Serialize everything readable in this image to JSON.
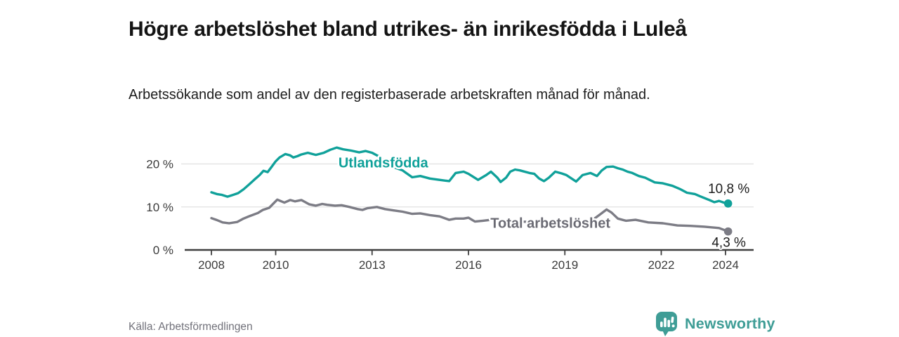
{
  "header": {
    "title": "Högre arbetslöshet bland utrikes- än inrikesfödda i Luleå",
    "subtitle": "Arbetssökande som andel av den registerbaserade arbetskraften månad för månad."
  },
  "footer": {
    "source": "Källa: Arbetsförmedlingen",
    "brand": "Newsworthy"
  },
  "colors": {
    "accent_teal": "#10a19a",
    "line_gray": "#7c7c85",
    "label_gray": "#6b6b74",
    "brand_teal": "#3f9d96",
    "axis": "#3f3f3f",
    "grid": "#e0e0e0",
    "value_text": "#1b1b1b"
  },
  "chart_data": {
    "type": "line",
    "title": "Högre arbetslöshet bland utrikes- än inrikesfödda i Luleå",
    "subtitle": "Arbetssökande som andel av den registerbaserade arbetskraften månad för månad.",
    "x_unit": "year (monthly data)",
    "y_unit": "percent",
    "xlim": [
      2007.2,
      2024.9
    ],
    "ylim": [
      0,
      25
    ],
    "grid": "horizontal",
    "x_ticks": [
      {
        "value": 2008,
        "label": "2008"
      },
      {
        "value": 2010,
        "label": "2010"
      },
      {
        "value": 2013,
        "label": "2013"
      },
      {
        "value": 2016,
        "label": "2016"
      },
      {
        "value": 2019,
        "label": "2019"
      },
      {
        "value": 2022,
        "label": "2022"
      },
      {
        "value": 2024,
        "label": "2024"
      }
    ],
    "y_ticks": [
      {
        "value": 0,
        "label": "0 %"
      },
      {
        "value": 10,
        "label": "10 %"
      },
      {
        "value": 20,
        "label": "20 %"
      }
    ],
    "series": [
      {
        "name": "Utlandsfödda",
        "color": "#10a19a",
        "label_anchor": {
          "x": 2013.35,
          "y": 20.3
        },
        "end_label": "10,8 %",
        "end_label_pos": "above",
        "end_value": 10.8,
        "points": [
          [
            2008.0,
            13.4
          ],
          [
            2008.17,
            13.0
          ],
          [
            2008.33,
            12.8
          ],
          [
            2008.5,
            12.4
          ],
          [
            2008.67,
            12.8
          ],
          [
            2008.83,
            13.2
          ],
          [
            2009.0,
            14.1
          ],
          [
            2009.17,
            15.2
          ],
          [
            2009.33,
            16.3
          ],
          [
            2009.5,
            17.4
          ],
          [
            2009.62,
            18.4
          ],
          [
            2009.75,
            18.1
          ],
          [
            2009.87,
            19.3
          ],
          [
            2010.0,
            20.6
          ],
          [
            2010.12,
            21.5
          ],
          [
            2010.3,
            22.3
          ],
          [
            2010.45,
            22.0
          ],
          [
            2010.55,
            21.5
          ],
          [
            2010.67,
            21.8
          ],
          [
            2010.8,
            22.2
          ],
          [
            2011.0,
            22.6
          ],
          [
            2011.25,
            22.1
          ],
          [
            2011.5,
            22.6
          ],
          [
            2011.7,
            23.3
          ],
          [
            2011.9,
            23.8
          ],
          [
            2012.1,
            23.4
          ],
          [
            2012.35,
            23.1
          ],
          [
            2012.6,
            22.7
          ],
          [
            2012.8,
            23.0
          ],
          [
            2013.0,
            22.6
          ],
          [
            2013.2,
            21.8
          ],
          [
            2013.45,
            20.2
          ],
          [
            2013.65,
            19.3
          ],
          [
            2013.95,
            18.5
          ],
          [
            2014.25,
            16.9
          ],
          [
            2014.5,
            17.2
          ],
          [
            2014.8,
            16.6
          ],
          [
            2015.1,
            16.3
          ],
          [
            2015.4,
            16.0
          ],
          [
            2015.6,
            17.9
          ],
          [
            2015.85,
            18.2
          ],
          [
            2016.0,
            17.7
          ],
          [
            2016.3,
            16.3
          ],
          [
            2016.55,
            17.4
          ],
          [
            2016.7,
            18.2
          ],
          [
            2016.9,
            16.8
          ],
          [
            2017.0,
            15.8
          ],
          [
            2017.17,
            16.8
          ],
          [
            2017.3,
            18.2
          ],
          [
            2017.45,
            18.7
          ],
          [
            2017.6,
            18.5
          ],
          [
            2017.9,
            17.9
          ],
          [
            2018.05,
            17.7
          ],
          [
            2018.2,
            16.6
          ],
          [
            2018.35,
            16.0
          ],
          [
            2018.5,
            16.8
          ],
          [
            2018.7,
            18.2
          ],
          [
            2018.9,
            17.8
          ],
          [
            2019.05,
            17.4
          ],
          [
            2019.35,
            15.9
          ],
          [
            2019.55,
            17.4
          ],
          [
            2019.8,
            17.9
          ],
          [
            2020.0,
            17.2
          ],
          [
            2020.15,
            18.5
          ],
          [
            2020.3,
            19.3
          ],
          [
            2020.5,
            19.4
          ],
          [
            2020.65,
            19.0
          ],
          [
            2020.8,
            18.7
          ],
          [
            2020.95,
            18.2
          ],
          [
            2021.1,
            17.9
          ],
          [
            2021.3,
            17.2
          ],
          [
            2021.5,
            16.8
          ],
          [
            2021.8,
            15.7
          ],
          [
            2022.05,
            15.5
          ],
          [
            2022.35,
            14.9
          ],
          [
            2022.6,
            14.1
          ],
          [
            2022.8,
            13.3
          ],
          [
            2023.05,
            13.0
          ],
          [
            2023.2,
            12.5
          ],
          [
            2023.5,
            11.6
          ],
          [
            2023.65,
            11.1
          ],
          [
            2023.8,
            11.4
          ],
          [
            2023.95,
            11.0
          ],
          [
            2024.08,
            10.8
          ]
        ]
      },
      {
        "name": "Total arbetslöshet",
        "color": "#7c7c85",
        "label_color": "#6b6b74",
        "label_anchor": {
          "x": 2018.55,
          "y": 6.3
        },
        "end_label": "4,3 %",
        "end_label_pos": "below",
        "end_value": 4.3,
        "points": [
          [
            2008.0,
            7.4
          ],
          [
            2008.15,
            7.0
          ],
          [
            2008.35,
            6.4
          ],
          [
            2008.55,
            6.2
          ],
          [
            2008.8,
            6.5
          ],
          [
            2009.0,
            7.3
          ],
          [
            2009.2,
            7.9
          ],
          [
            2009.45,
            8.6
          ],
          [
            2009.6,
            9.3
          ],
          [
            2009.8,
            9.8
          ],
          [
            2010.05,
            11.7
          ],
          [
            2010.27,
            11.0
          ],
          [
            2010.45,
            11.6
          ],
          [
            2010.6,
            11.3
          ],
          [
            2010.8,
            11.6
          ],
          [
            2011.05,
            10.6
          ],
          [
            2011.25,
            10.3
          ],
          [
            2011.45,
            10.7
          ],
          [
            2011.6,
            10.5
          ],
          [
            2011.85,
            10.3
          ],
          [
            2012.05,
            10.4
          ],
          [
            2012.3,
            10.0
          ],
          [
            2012.55,
            9.5
          ],
          [
            2012.7,
            9.3
          ],
          [
            2012.85,
            9.7
          ],
          [
            2013.15,
            10.0
          ],
          [
            2013.4,
            9.5
          ],
          [
            2013.65,
            9.2
          ],
          [
            2013.95,
            8.9
          ],
          [
            2014.25,
            8.4
          ],
          [
            2014.5,
            8.5
          ],
          [
            2014.8,
            8.1
          ],
          [
            2015.1,
            7.8
          ],
          [
            2015.4,
            7.0
          ],
          [
            2015.6,
            7.3
          ],
          [
            2015.85,
            7.3
          ],
          [
            2016.0,
            7.5
          ],
          [
            2016.2,
            6.6
          ],
          [
            2016.45,
            6.8
          ],
          [
            2016.7,
            7.0
          ],
          [
            2017.0,
            6.6
          ],
          [
            2017.3,
            6.4
          ],
          [
            2017.6,
            6.6
          ],
          [
            2018.0,
            6.5
          ],
          [
            2018.3,
            6.2
          ],
          [
            2018.6,
            6.4
          ],
          [
            2019.0,
            6.4
          ],
          [
            2019.3,
            6.2
          ],
          [
            2019.6,
            6.5
          ],
          [
            2019.85,
            6.9
          ],
          [
            2020.1,
            8.3
          ],
          [
            2020.3,
            9.4
          ],
          [
            2020.45,
            8.7
          ],
          [
            2020.65,
            7.3
          ],
          [
            2020.9,
            6.8
          ],
          [
            2021.2,
            7.0
          ],
          [
            2021.6,
            6.4
          ],
          [
            2022.05,
            6.2
          ],
          [
            2022.5,
            5.7
          ],
          [
            2022.9,
            5.6
          ],
          [
            2023.35,
            5.4
          ],
          [
            2023.8,
            5.1
          ],
          [
            2024.08,
            4.3
          ]
        ]
      }
    ]
  }
}
